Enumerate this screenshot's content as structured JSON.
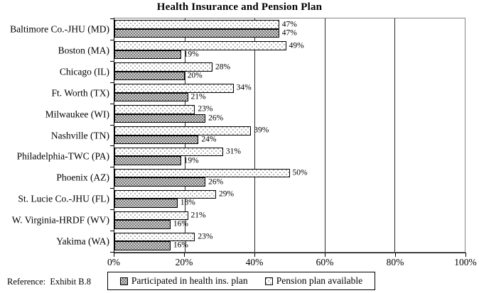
{
  "title": "Health Insurance and Pension Plan",
  "reference": "Reference:  Exhibit B.8",
  "legend": {
    "health": "Participated in health ins. plan",
    "pension": "Pension plan available"
  },
  "chart_data": {
    "type": "bar",
    "orientation": "horizontal",
    "title": "Health Insurance and Pension Plan",
    "categories": [
      "Baltimore Co.-JHU (MD)",
      "Boston (MA)",
      "Chicago (IL)",
      "Ft. Worth (TX)",
      "Milwaukee (WI)",
      "Nashville (TN)",
      "Philadelphia-TWC (PA)",
      "Phoenix (AZ)",
      "St. Lucie Co.-JHU (FL)",
      "W. Virginia-HRDF (WV)",
      "Yakima (WA)"
    ],
    "series": [
      {
        "id": "health",
        "name": "Participated in health ins. plan",
        "pattern": "gray-checker",
        "values": [
          47,
          19,
          20,
          21,
          26,
          24,
          19,
          26,
          18,
          16,
          16
        ]
      },
      {
        "id": "pension",
        "name": "Pension plan available",
        "pattern": "white-dots",
        "values": [
          47,
          49,
          28,
          34,
          23,
          39,
          31,
          50,
          29,
          21,
          23
        ]
      }
    ],
    "row_order_top_to_bottom": [
      "pension",
      "health"
    ],
    "value_label_format": "{value}%",
    "x_axis": {
      "min": 0,
      "max": 100,
      "tick_labels": [
        "0%",
        "20%",
        "40%",
        "60%",
        "80%",
        "100%"
      ],
      "gridlines_at": [
        20,
        40,
        60,
        80
      ]
    },
    "grid": true,
    "legend_position": "bottom"
  }
}
